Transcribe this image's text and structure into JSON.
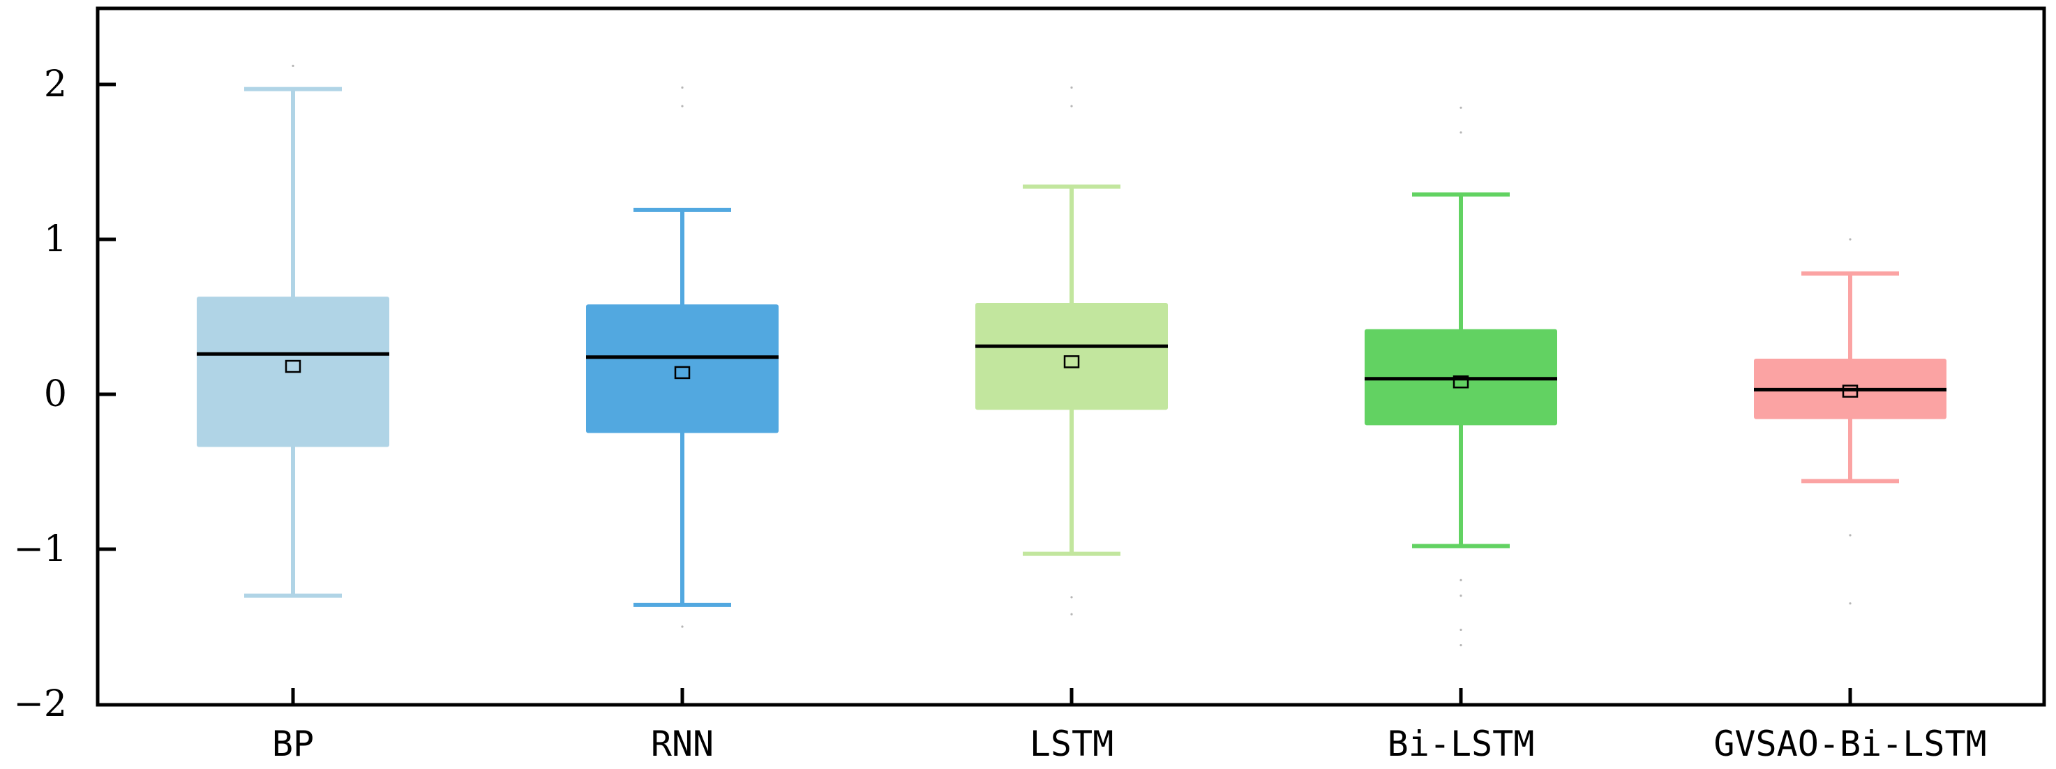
{
  "chart_data": {
    "type": "boxplot",
    "title": "",
    "xlabel": "",
    "ylabel": "",
    "ylim": [
      -2,
      2.5
    ],
    "yticks": [
      2,
      1,
      0,
      -1,
      -2
    ],
    "ytick_labels": [
      "2",
      "1",
      "0",
      "−1",
      "−2"
    ],
    "grid": false,
    "categories": [
      "BP",
      "RNN",
      "LSTM",
      "Bi-LSTM",
      "GVSAO-Bi-LSTM"
    ],
    "boxes": [
      {
        "name": "BP",
        "color": "#b0d4e6",
        "whisker_low": -1.3,
        "q1": -0.34,
        "median": 0.26,
        "q3": 0.63,
        "whisker_high": 1.97,
        "mean": 0.18,
        "outliers": [
          2.12
        ]
      },
      {
        "name": "RNN",
        "color": "#52a8e0",
        "whisker_low": -1.36,
        "q1": -0.25,
        "median": 0.24,
        "q3": 0.58,
        "whisker_high": 1.19,
        "mean": 0.14,
        "outliers": [
          -1.5,
          1.86,
          1.98
        ]
      },
      {
        "name": "LSTM",
        "color": "#c2e69e",
        "whisker_low": -1.03,
        "q1": -0.1,
        "median": 0.31,
        "q3": 0.59,
        "whisker_high": 1.34,
        "mean": 0.21,
        "outliers": [
          -1.42,
          -1.31,
          1.86,
          1.98
        ]
      },
      {
        "name": "Bi-LSTM",
        "color": "#62d262",
        "whisker_low": -0.98,
        "q1": -0.2,
        "median": 0.1,
        "q3": 0.42,
        "whisker_high": 1.29,
        "mean": 0.08,
        "outliers": [
          -1.62,
          -1.52,
          -1.3,
          -1.2,
          1.69,
          1.85
        ]
      },
      {
        "name": "GVSAO-Bi-LSTM",
        "color": "#fba3a3",
        "whisker_low": -0.56,
        "q1": -0.16,
        "median": 0.03,
        "q3": 0.23,
        "whisker_high": 0.78,
        "mean": 0.02,
        "outliers": [
          -1.35,
          -0.91,
          1.0
        ]
      }
    ]
  }
}
